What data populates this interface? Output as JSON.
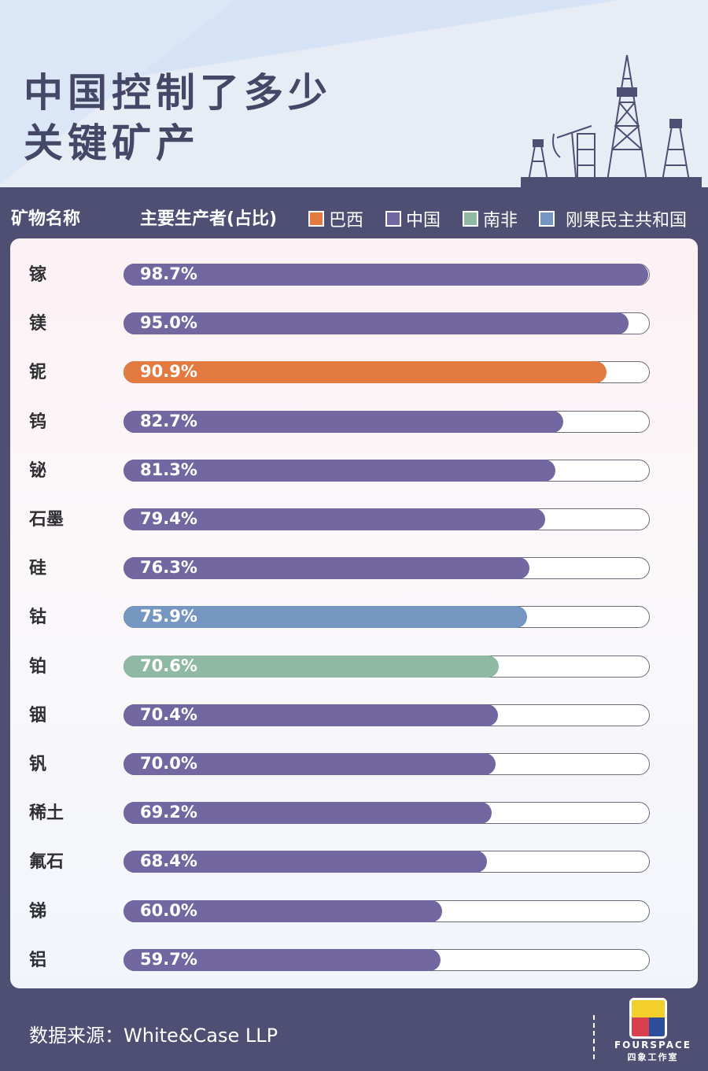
{
  "header": {
    "title_line1": "中国控制了多少",
    "title_line2": "关键矿产"
  },
  "table_header": {
    "col_mineral": "矿物名称",
    "col_producer": "主要生产者(占比)"
  },
  "legend": [
    {
      "label": "巴西",
      "color": "#e37a3f"
    },
    {
      "label": "中国",
      "color": "#7267a1"
    },
    {
      "label": "南非",
      "color": "#8fb9a3"
    },
    {
      "label": "刚果民主共和国",
      "color": "#7496c0"
    }
  ],
  "chart_data": {
    "type": "bar",
    "orientation": "horizontal",
    "title": "中国控制了多少关键矿产",
    "xlabel": "主要生产者(占比)",
    "ylabel": "矿物名称",
    "xlim": [
      0,
      100
    ],
    "categories": [
      "镓",
      "镁",
      "铌",
      "钨",
      "铋",
      "石墨",
      "硅",
      "钴",
      "铂",
      "铟",
      "钒",
      "稀土",
      "氟石",
      "锑",
      "铝"
    ],
    "values": [
      98.7,
      95.0,
      90.9,
      82.7,
      81.3,
      79.4,
      76.3,
      75.9,
      70.6,
      70.4,
      70.0,
      69.2,
      68.4,
      60.0,
      59.7
    ],
    "labels": [
      "98.7%",
      "95.0%",
      "90.9%",
      "82.7%",
      "81.3%",
      "79.4%",
      "76.3%",
      "75.9%",
      "70.6%",
      "70.4%",
      "70.0%",
      "69.2%",
      "68.4%",
      "60.0%",
      "59.7%"
    ],
    "producer": [
      "中国",
      "中国",
      "巴西",
      "中国",
      "中国",
      "中国",
      "中国",
      "刚果民主共和国",
      "南非",
      "中国",
      "中国",
      "中国",
      "中国",
      "中国",
      "中国"
    ],
    "legend": [
      "巴西",
      "中国",
      "南非",
      "刚果民主共和国"
    ],
    "grid": false,
    "legend_position": "top"
  },
  "rows": [
    {
      "name": "镓",
      "pct": "98.7%",
      "value": 98.7,
      "color": "#7267a1"
    },
    {
      "name": "镁",
      "pct": "95.0%",
      "value": 95.0,
      "color": "#7267a1"
    },
    {
      "name": "铌",
      "pct": "90.9%",
      "value": 90.9,
      "color": "#e37a3f"
    },
    {
      "name": "钨",
      "pct": "82.7%",
      "value": 82.7,
      "color": "#7267a1"
    },
    {
      "name": "铋",
      "pct": "81.3%",
      "value": 81.3,
      "color": "#7267a1"
    },
    {
      "name": "石墨",
      "pct": "79.4%",
      "value": 79.4,
      "color": "#7267a1"
    },
    {
      "name": "硅",
      "pct": "76.3%",
      "value": 76.3,
      "color": "#7267a1"
    },
    {
      "name": "钴",
      "pct": "75.9%",
      "value": 75.9,
      "color": "#7496c0"
    },
    {
      "name": "铂",
      "pct": "70.6%",
      "value": 70.6,
      "color": "#8fb9a3"
    },
    {
      "name": "铟",
      "pct": "70.4%",
      "value": 70.4,
      "color": "#7267a1"
    },
    {
      "name": "钒",
      "pct": "70.0%",
      "value": 70.0,
      "color": "#7267a1"
    },
    {
      "name": "稀土",
      "pct": "69.2%",
      "value": 69.2,
      "color": "#7267a1"
    },
    {
      "name": "氟石",
      "pct": "68.4%",
      "value": 68.4,
      "color": "#7267a1"
    },
    {
      "name": "锑",
      "pct": "60.0%",
      "value": 60.0,
      "color": "#7267a1"
    },
    {
      "name": "铝",
      "pct": "59.7%",
      "value": 59.7,
      "color": "#7267a1"
    }
  ],
  "footer": {
    "source": "数据来源：White&Case LLP",
    "logo_en": "FOURSPACE",
    "logo_cn": "四象工作室"
  }
}
